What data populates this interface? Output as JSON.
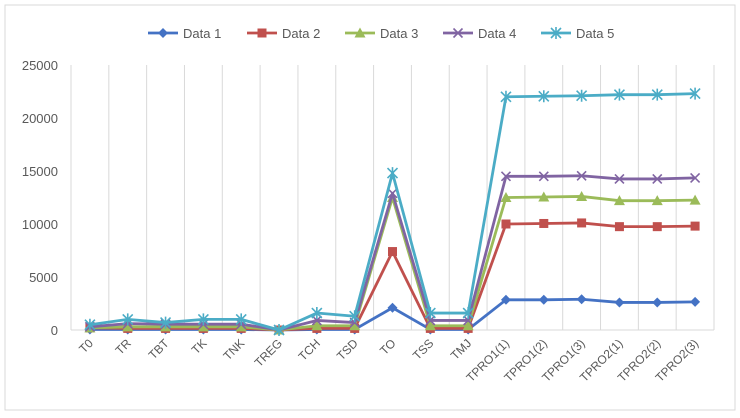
{
  "chart_data": {
    "type": "line",
    "title": "",
    "xlabel": "",
    "ylabel": "",
    "ylim": [
      0,
      25000
    ],
    "yticks": [
      0,
      5000,
      10000,
      15000,
      20000,
      25000
    ],
    "ytick_labels": [
      "0",
      "5000",
      "10000",
      "15000",
      "20000",
      "25000"
    ],
    "grid": "vertical",
    "legend_position": "top",
    "categories": [
      "T0",
      "TR",
      "TBT",
      "TK",
      "TNK",
      "TREG",
      "TCH",
      "TSD",
      "TO",
      "TSS",
      "TMJ",
      "TPRO1(1)",
      "TPRO1(2)",
      "TPRO1(3)",
      "TPRO2(1)",
      "TPRO2(2)",
      "TPRO2(3)"
    ],
    "series": [
      {
        "name": "Data 1",
        "color": "#4472C4",
        "marker": "diamond",
        "values": [
          50,
          50,
          50,
          50,
          50,
          0,
          50,
          50,
          2100,
          50,
          50,
          2850,
          2850,
          2900,
          2600,
          2600,
          2650
        ]
      },
      {
        "name": "Data 2",
        "color": "#C0504D",
        "marker": "square",
        "values": [
          200,
          150,
          150,
          150,
          150,
          0,
          150,
          150,
          7400,
          150,
          150,
          10000,
          10050,
          10100,
          9750,
          9750,
          9800
        ]
      },
      {
        "name": "Data 3",
        "color": "#9BBB59",
        "marker": "triangle",
        "values": [
          200,
          300,
          300,
          300,
          300,
          0,
          400,
          400,
          12500,
          400,
          400,
          12500,
          12550,
          12600,
          12200,
          12200,
          12250
        ]
      },
      {
        "name": "Data 4",
        "color": "#8064A2",
        "marker": "x",
        "values": [
          300,
          600,
          550,
          550,
          550,
          0,
          900,
          700,
          12900,
          900,
          900,
          14500,
          14500,
          14550,
          14250,
          14250,
          14350
        ]
      },
      {
        "name": "Data 5",
        "color": "#4BACC6",
        "marker": "star",
        "values": [
          500,
          1000,
          700,
          1000,
          1000,
          0,
          1600,
          1300,
          14800,
          1600,
          1600,
          22000,
          22050,
          22100,
          22200,
          22200,
          22300
        ]
      }
    ]
  }
}
